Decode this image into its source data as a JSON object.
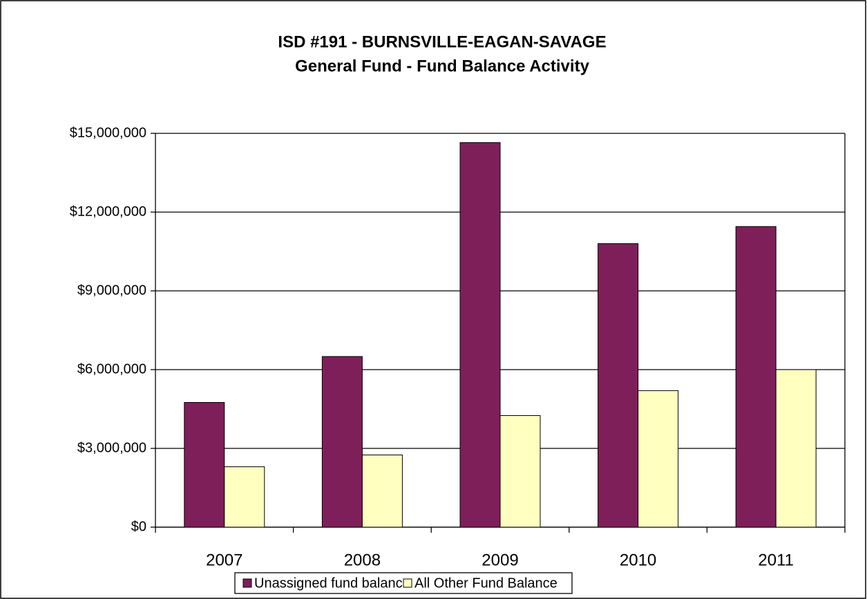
{
  "chart_data": {
    "type": "bar",
    "title": "ISD #191 - BURNSVILLE-EAGAN-SAVAGE",
    "subtitle": "General Fund - Fund Balance Activity",
    "categories": [
      "2007",
      "2008",
      "2009",
      "2010",
      "2011"
    ],
    "series": [
      {
        "name": "Unassigned fund balance",
        "color": "#7f1f5a",
        "values": [
          4750000,
          6500000,
          14650000,
          10800000,
          11450000
        ]
      },
      {
        "name": "All Other Fund Balance",
        "color": "#ffffc0",
        "values": [
          2300000,
          2750000,
          4250000,
          5200000,
          6000000
        ]
      }
    ],
    "ylim": [
      0,
      15000000
    ],
    "yticks": [
      {
        "value": 0,
        "label": "$0"
      },
      {
        "value": 3000000,
        "label": "$3,000,000"
      },
      {
        "value": 6000000,
        "label": "$6,000,000"
      },
      {
        "value": 9000000,
        "label": "$9,000,000"
      },
      {
        "value": 12000000,
        "label": "$12,000,000"
      },
      {
        "value": 15000000,
        "label": "$15,000,000"
      }
    ],
    "grid": true,
    "legend": "bottom"
  }
}
